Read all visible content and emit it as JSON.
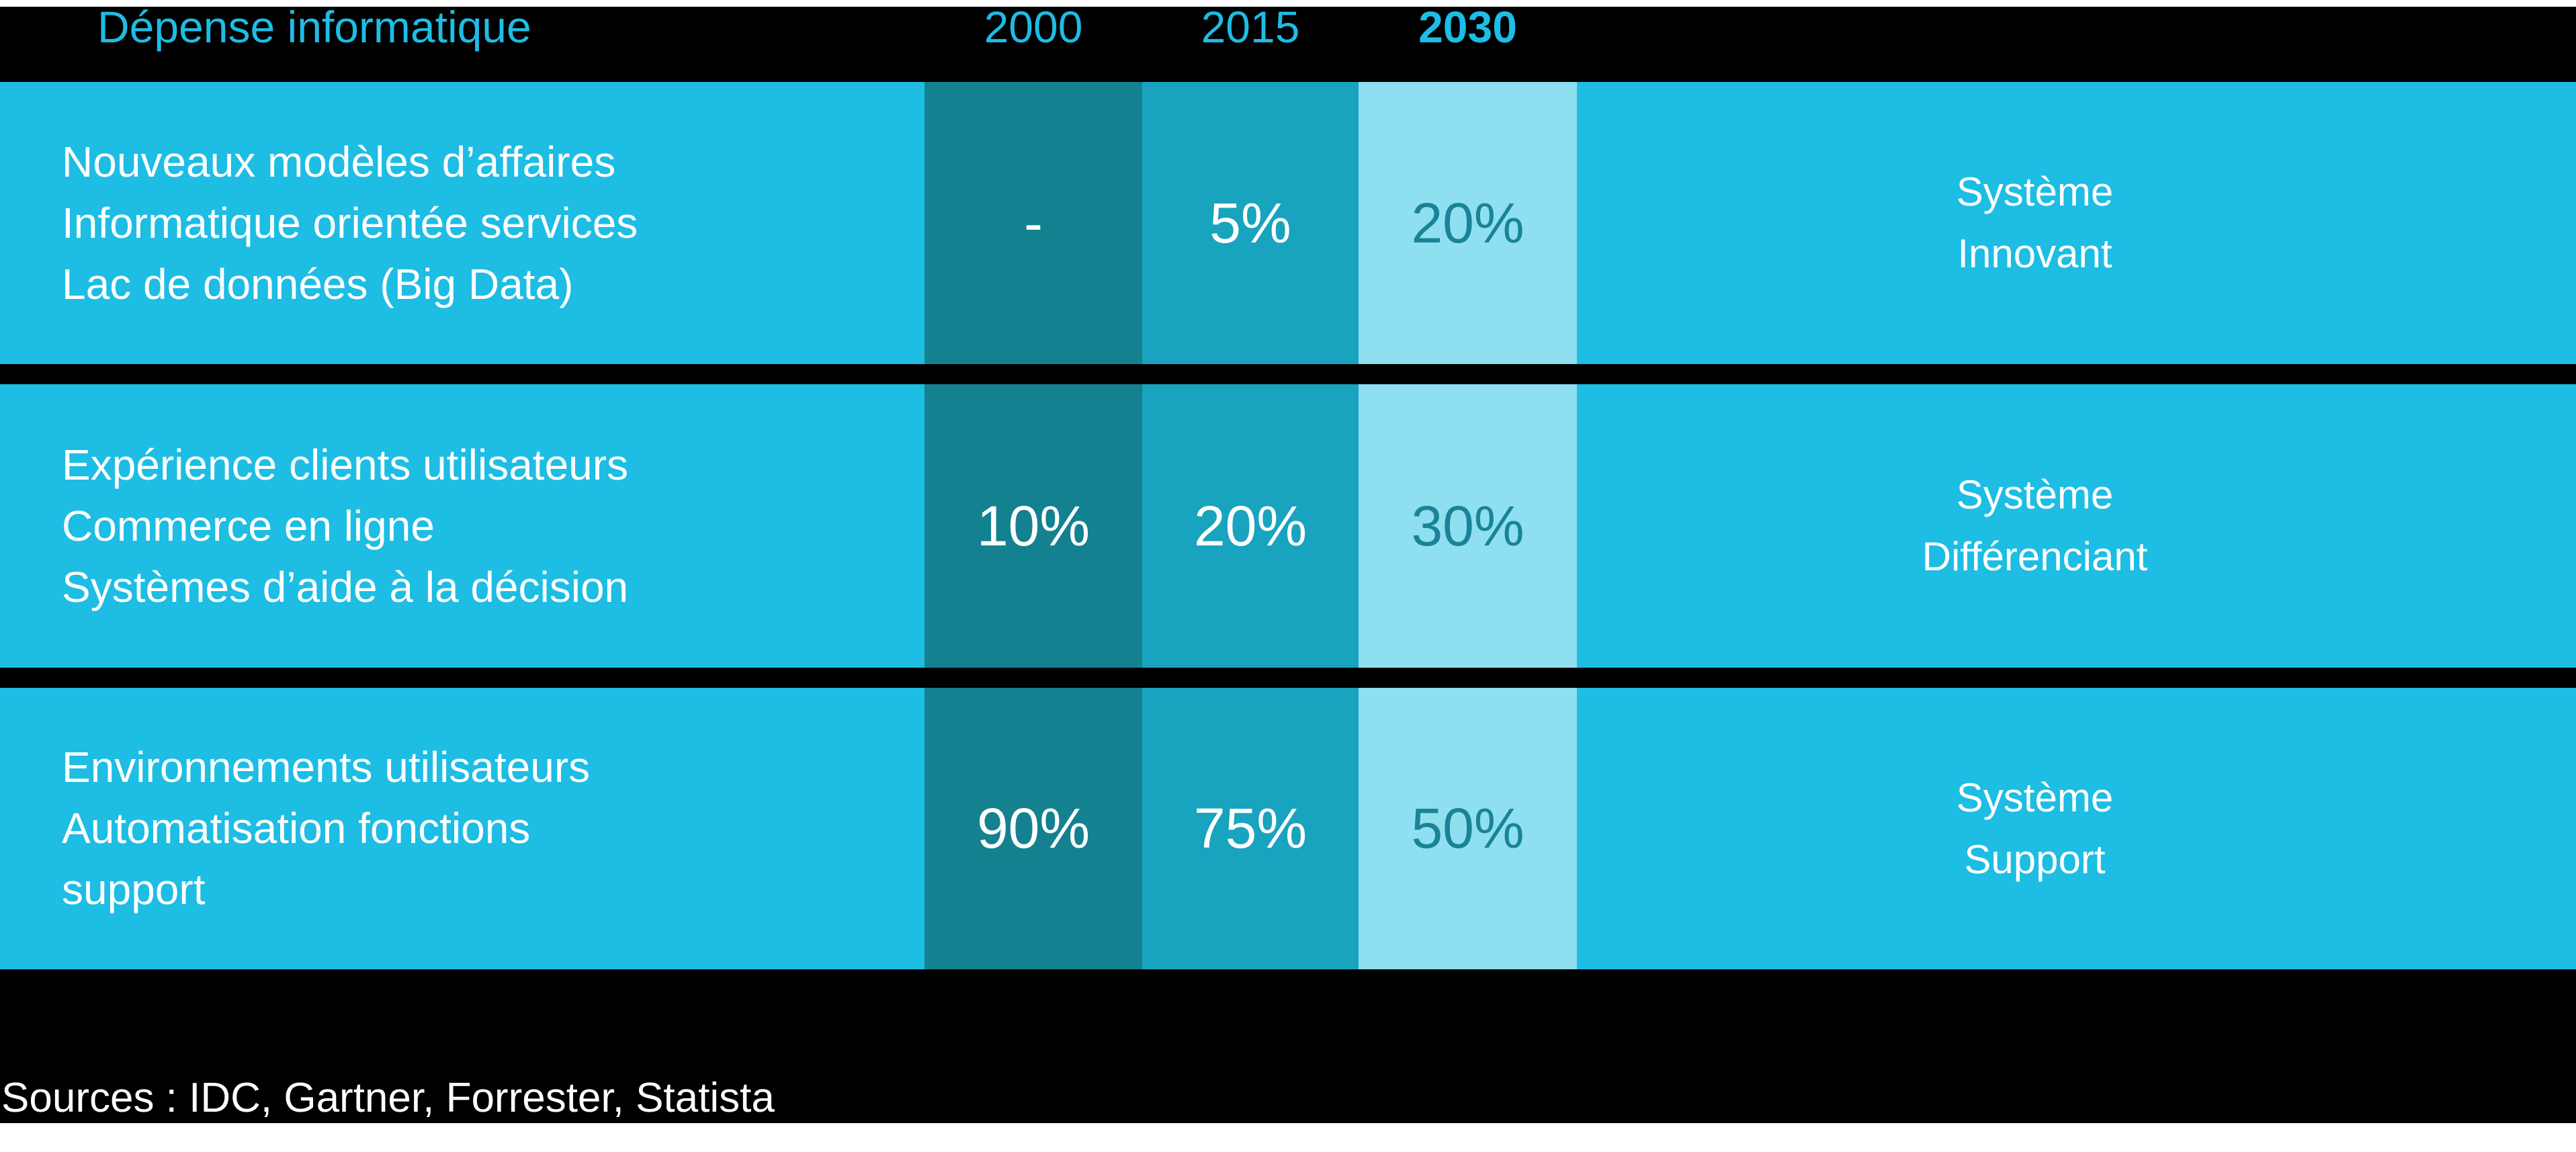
{
  "chart_data": {
    "type": "table",
    "title": "Dépense informatique",
    "year_columns": [
      "2000",
      "2015",
      "2030"
    ],
    "rows": [
      {
        "label_lines": [
          "Nouveaux modèles d’affaires",
          "Informatique orientée services",
          "Lac de données (Big Data)"
        ],
        "values": [
          "-",
          "5%",
          "20%"
        ],
        "system_lines": [
          "Système",
          "Innovant"
        ]
      },
      {
        "label_lines": [
          "Expérience clients utilisateurs",
          "Commerce en ligne",
          "Systèmes d’aide à la décision"
        ],
        "values": [
          "10%",
          "20%",
          "30%"
        ],
        "system_lines": [
          "Système",
          "Différenciant"
        ]
      },
      {
        "label_lines": [
          "Environnements utilisateurs",
          "Automatisation fonctions",
          "support"
        ],
        "values": [
          "90%",
          "75%",
          "50%"
        ],
        "system_lines": [
          "Système",
          "Support"
        ]
      }
    ],
    "source_note": "Sources : IDC, Gartner, Forrester, Statista"
  },
  "colors": {
    "canvas": "#000000",
    "row_bg": "#1DBDE4",
    "col_2000": "#13818F",
    "col_2015": "#18A3BF",
    "col_2030": "#8EDFF0",
    "header_text": "#1DBDE4",
    "value_on_light": "#1A8396",
    "row_text": "#FFFFFF"
  }
}
